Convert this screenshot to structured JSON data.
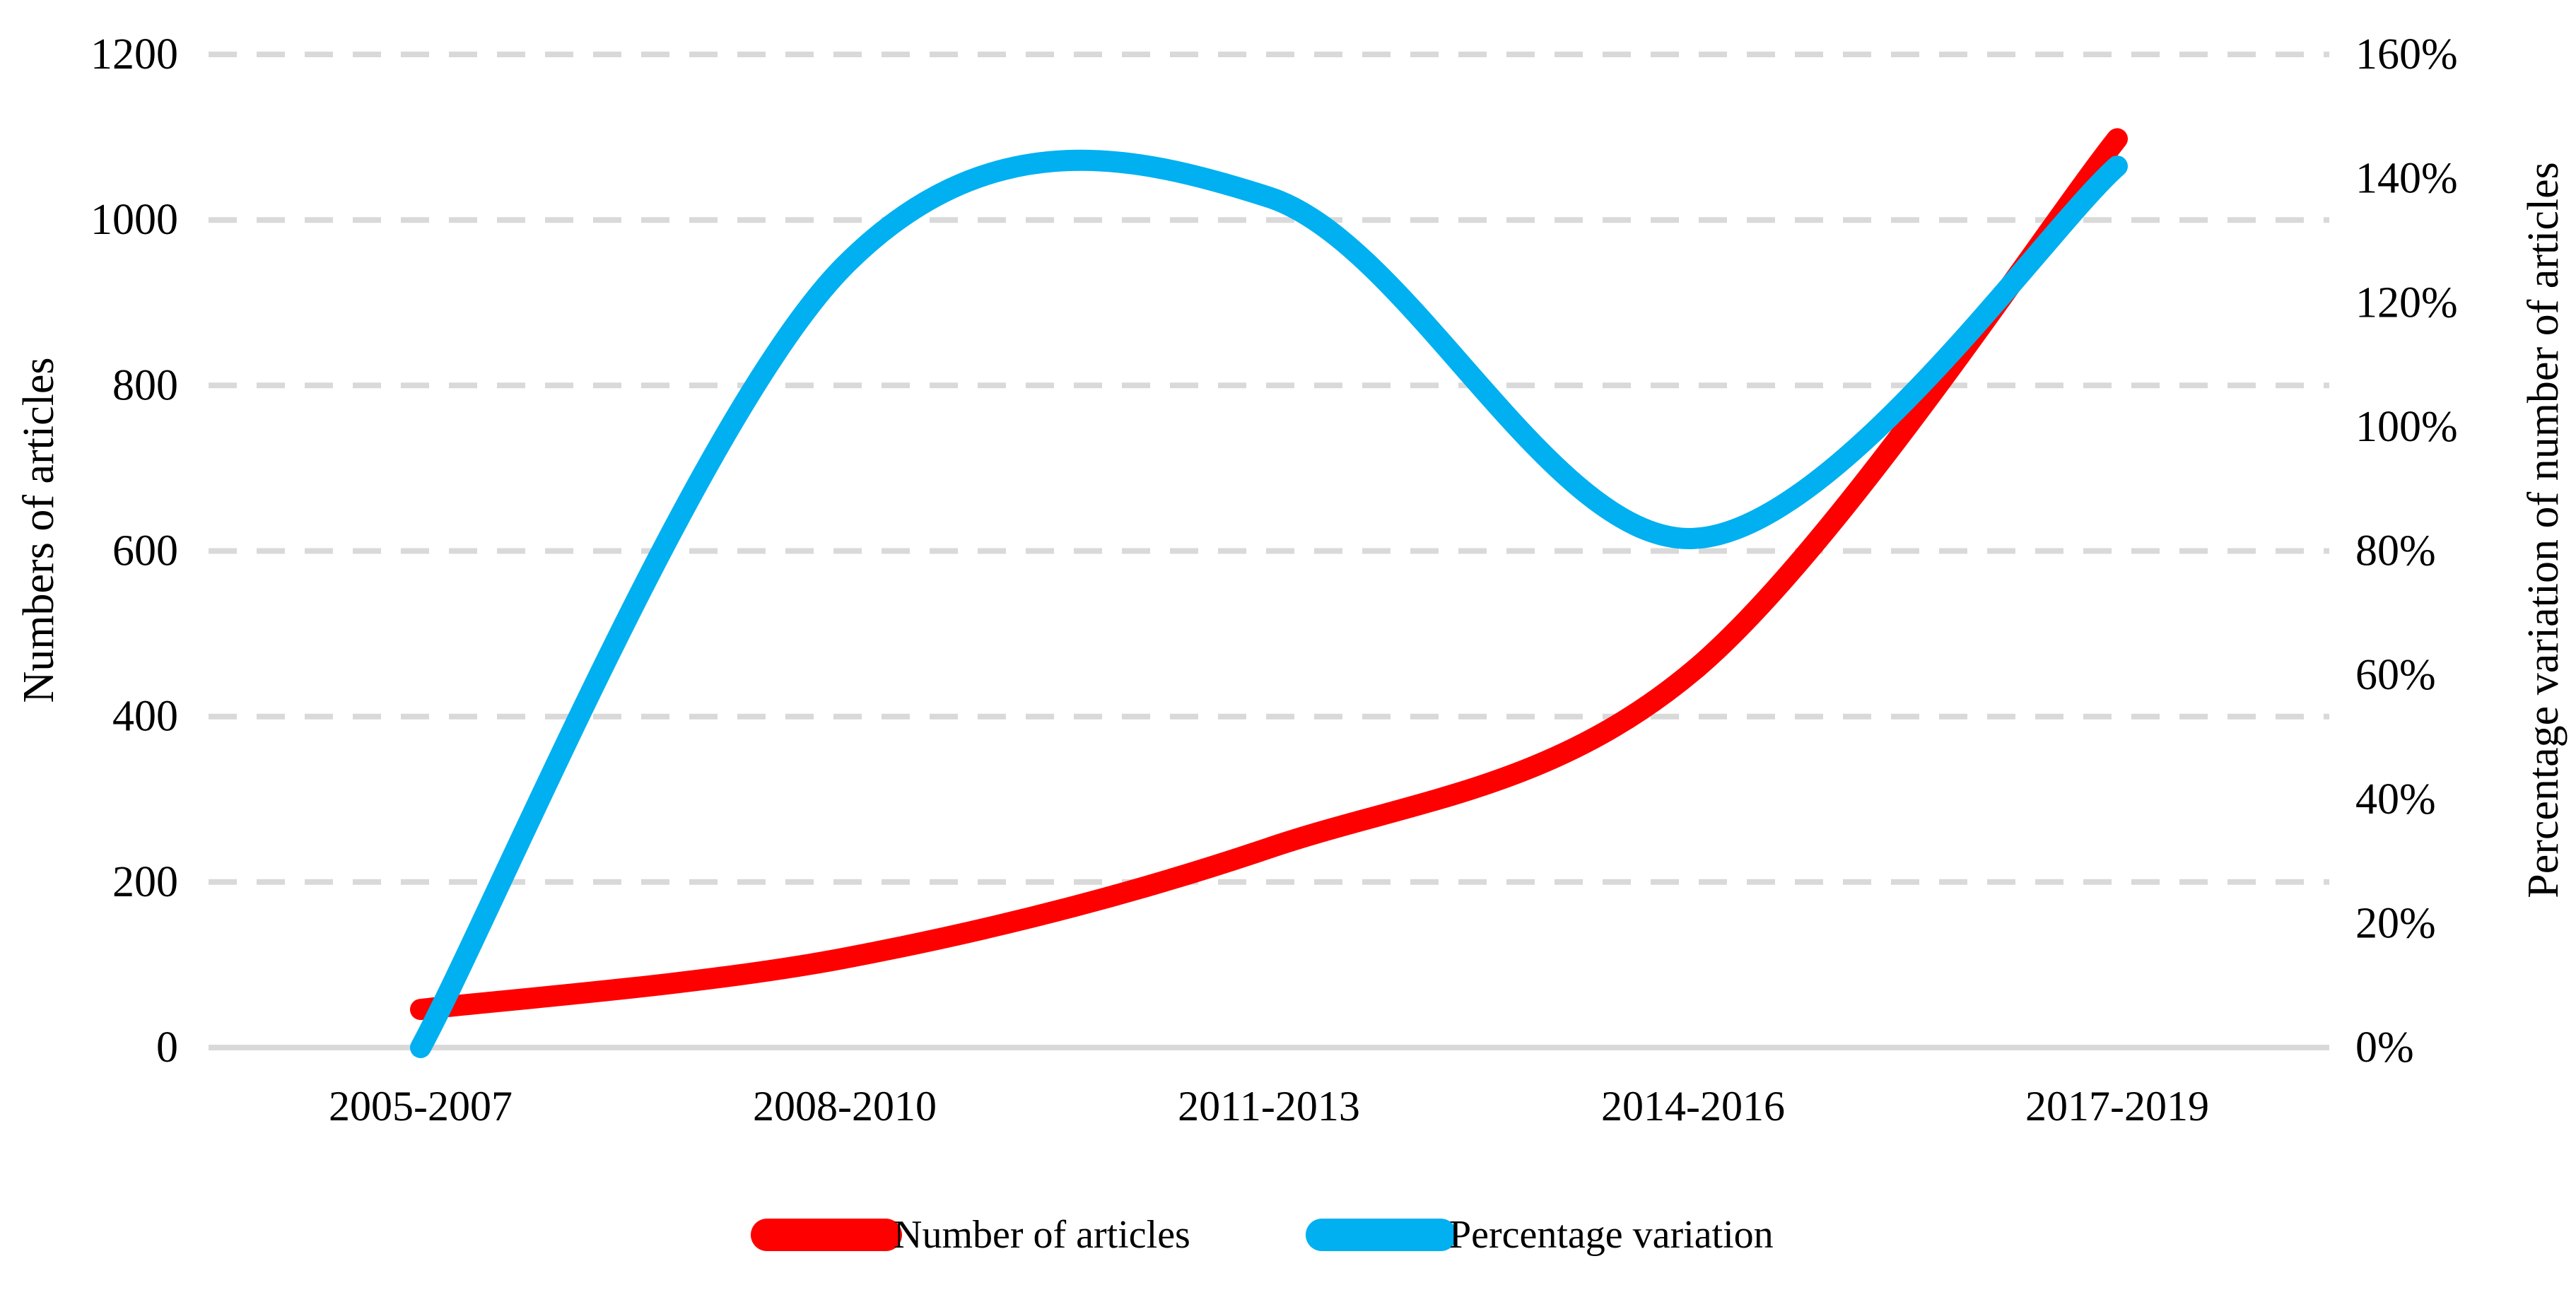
{
  "page": {
    "background": "#ffffff"
  },
  "chart_data": {
    "type": "line",
    "smoothed": true,
    "title": "",
    "categories": [
      "2005-2007",
      "2008-2010",
      "2011-2013",
      "2014-2016",
      "2017-2019"
    ],
    "series": [
      {
        "name": "Number of articles",
        "axis": "left",
        "color": "#ff0000",
        "values": [
          46,
          108,
          241,
          455,
          1098
        ]
      },
      {
        "name": "Percentage variation",
        "axis": "right",
        "color": "#00b0f0",
        "unit": "%",
        "values": [
          0,
          126,
          137,
          82,
          142
        ]
      }
    ],
    "left_axis": {
      "title": "Numbers of articles",
      "min": 0,
      "max": 1200,
      "step": 200,
      "tick_labels": [
        "1200",
        "1000",
        "800",
        "600",
        "400",
        "200",
        "0"
      ]
    },
    "right_axis": {
      "title": "Percentage variation of number of articles",
      "min": 0,
      "max": 160,
      "step": 20,
      "tick_labels": [
        "160%",
        "140%",
        "120%",
        "100%",
        "80%",
        "60%",
        "40%",
        "20%",
        "0%"
      ]
    },
    "legend": [
      {
        "label": "Number of articles",
        "color": "#ff0000"
      },
      {
        "label": "Percentage variation",
        "color": "#00b0f0"
      }
    ],
    "grid": {
      "style": "dashed",
      "color": "#d9d9d9"
    },
    "axis_line_color": "#d9d9d9",
    "text_color": "#000000",
    "legend_position": "bottom"
  }
}
